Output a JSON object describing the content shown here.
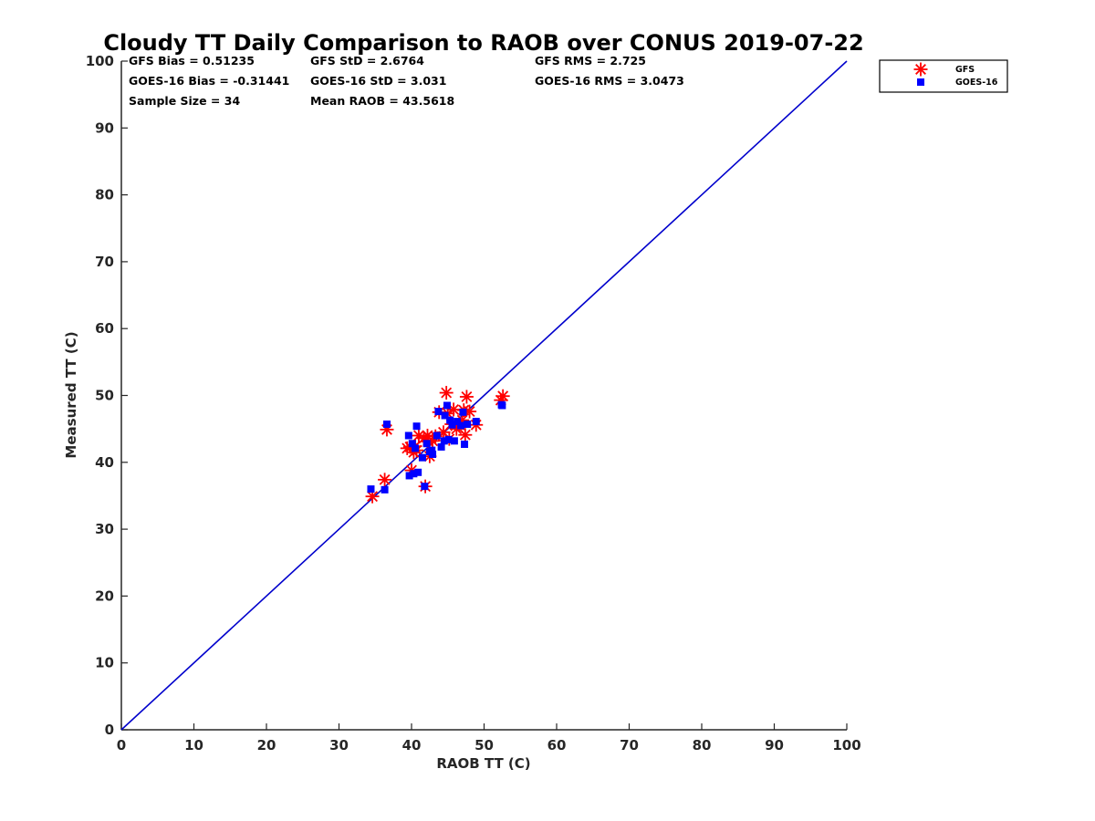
{
  "chart_data": {
    "type": "scatter",
    "title": "Cloudy TT Daily Comparison to RAOB over CONUS 2019-07-22",
    "xlabel": "RAOB TT (C)",
    "ylabel": "Measured TT (C)",
    "xlim": [
      0,
      100
    ],
    "ylim": [
      0,
      100
    ],
    "xticks": [
      "0",
      "10",
      "20",
      "30",
      "40",
      "50",
      "60",
      "70",
      "80",
      "90",
      "100"
    ],
    "yticks": [
      "0",
      "10",
      "20",
      "30",
      "40",
      "50",
      "60",
      "70",
      "80",
      "90",
      "100"
    ],
    "grid": false,
    "legend_position": "outside-top-right",
    "stats": {
      "gfs_bias": "GFS Bias = 0.51235",
      "gfs_std": "GFS StD = 2.6764",
      "gfs_rms": "GFS RMS = 2.725",
      "goes_bias": "GOES-16 Bias = -0.31441",
      "goes_std": "GOES-16 StD = 3.031",
      "goes_rms": "GOES-16 RMS = 3.0473",
      "sample_size": "Sample Size = 34",
      "mean_raob": "Mean RAOB = 43.5618"
    },
    "reference_line": {
      "x": [
        0,
        100
      ],
      "y": [
        0,
        100
      ],
      "color": "#0000cc"
    },
    "series": [
      {
        "name": "GFS",
        "marker": "asterisk",
        "color": "#ff0000",
        "x": [
          34.6,
          36.3,
          36.6,
          39.4,
          39.8,
          40.0,
          40.3,
          40.7,
          41.0,
          41.7,
          41.9,
          42.3,
          42.5,
          42.9,
          43.3,
          43.8,
          44.4,
          44.8,
          45.0,
          45.2,
          45.5,
          45.8,
          46.2,
          46.6,
          47.0,
          47.2,
          47.4,
          47.6,
          48.0,
          48.9,
          52.3,
          52.6,
          40.5,
          42.2
        ],
        "y": [
          34.9,
          37.4,
          44.9,
          42.1,
          42.3,
          38.8,
          41.5,
          41.8,
          44.0,
          43.6,
          36.4,
          43.1,
          40.9,
          43.2,
          43.9,
          47.5,
          44.5,
          50.4,
          47.3,
          43.5,
          45.7,
          47.9,
          45.0,
          45.6,
          46.3,
          47.8,
          44.1,
          49.8,
          47.6,
          45.6,
          49.3,
          49.9,
          42.4,
          44.0
        ]
      },
      {
        "name": "GOES-16",
        "marker": "square",
        "color": "#0000ff",
        "x": [
          34.4,
          36.3,
          36.6,
          39.6,
          39.7,
          40.1,
          40.3,
          40.5,
          40.7,
          41.5,
          41.8,
          42.1,
          42.5,
          42.9,
          43.5,
          43.7,
          44.1,
          44.5,
          44.9,
          45.1,
          45.3,
          45.6,
          45.9,
          46.3,
          46.8,
          47.1,
          47.3,
          47.7,
          48.9,
          52.4,
          52.5,
          44.6,
          42.8,
          40.9
        ],
        "y": [
          36.0,
          35.9,
          45.7,
          44.0,
          38.0,
          42.8,
          38.3,
          42.1,
          45.4,
          40.7,
          36.4,
          42.8,
          41.6,
          41.2,
          44.0,
          47.6,
          42.3,
          43.2,
          48.5,
          43.4,
          46.3,
          45.6,
          43.2,
          46.1,
          45.5,
          47.5,
          42.7,
          45.7,
          46.1,
          48.6,
          48.5,
          47.0,
          41.8,
          38.5
        ]
      }
    ]
  }
}
